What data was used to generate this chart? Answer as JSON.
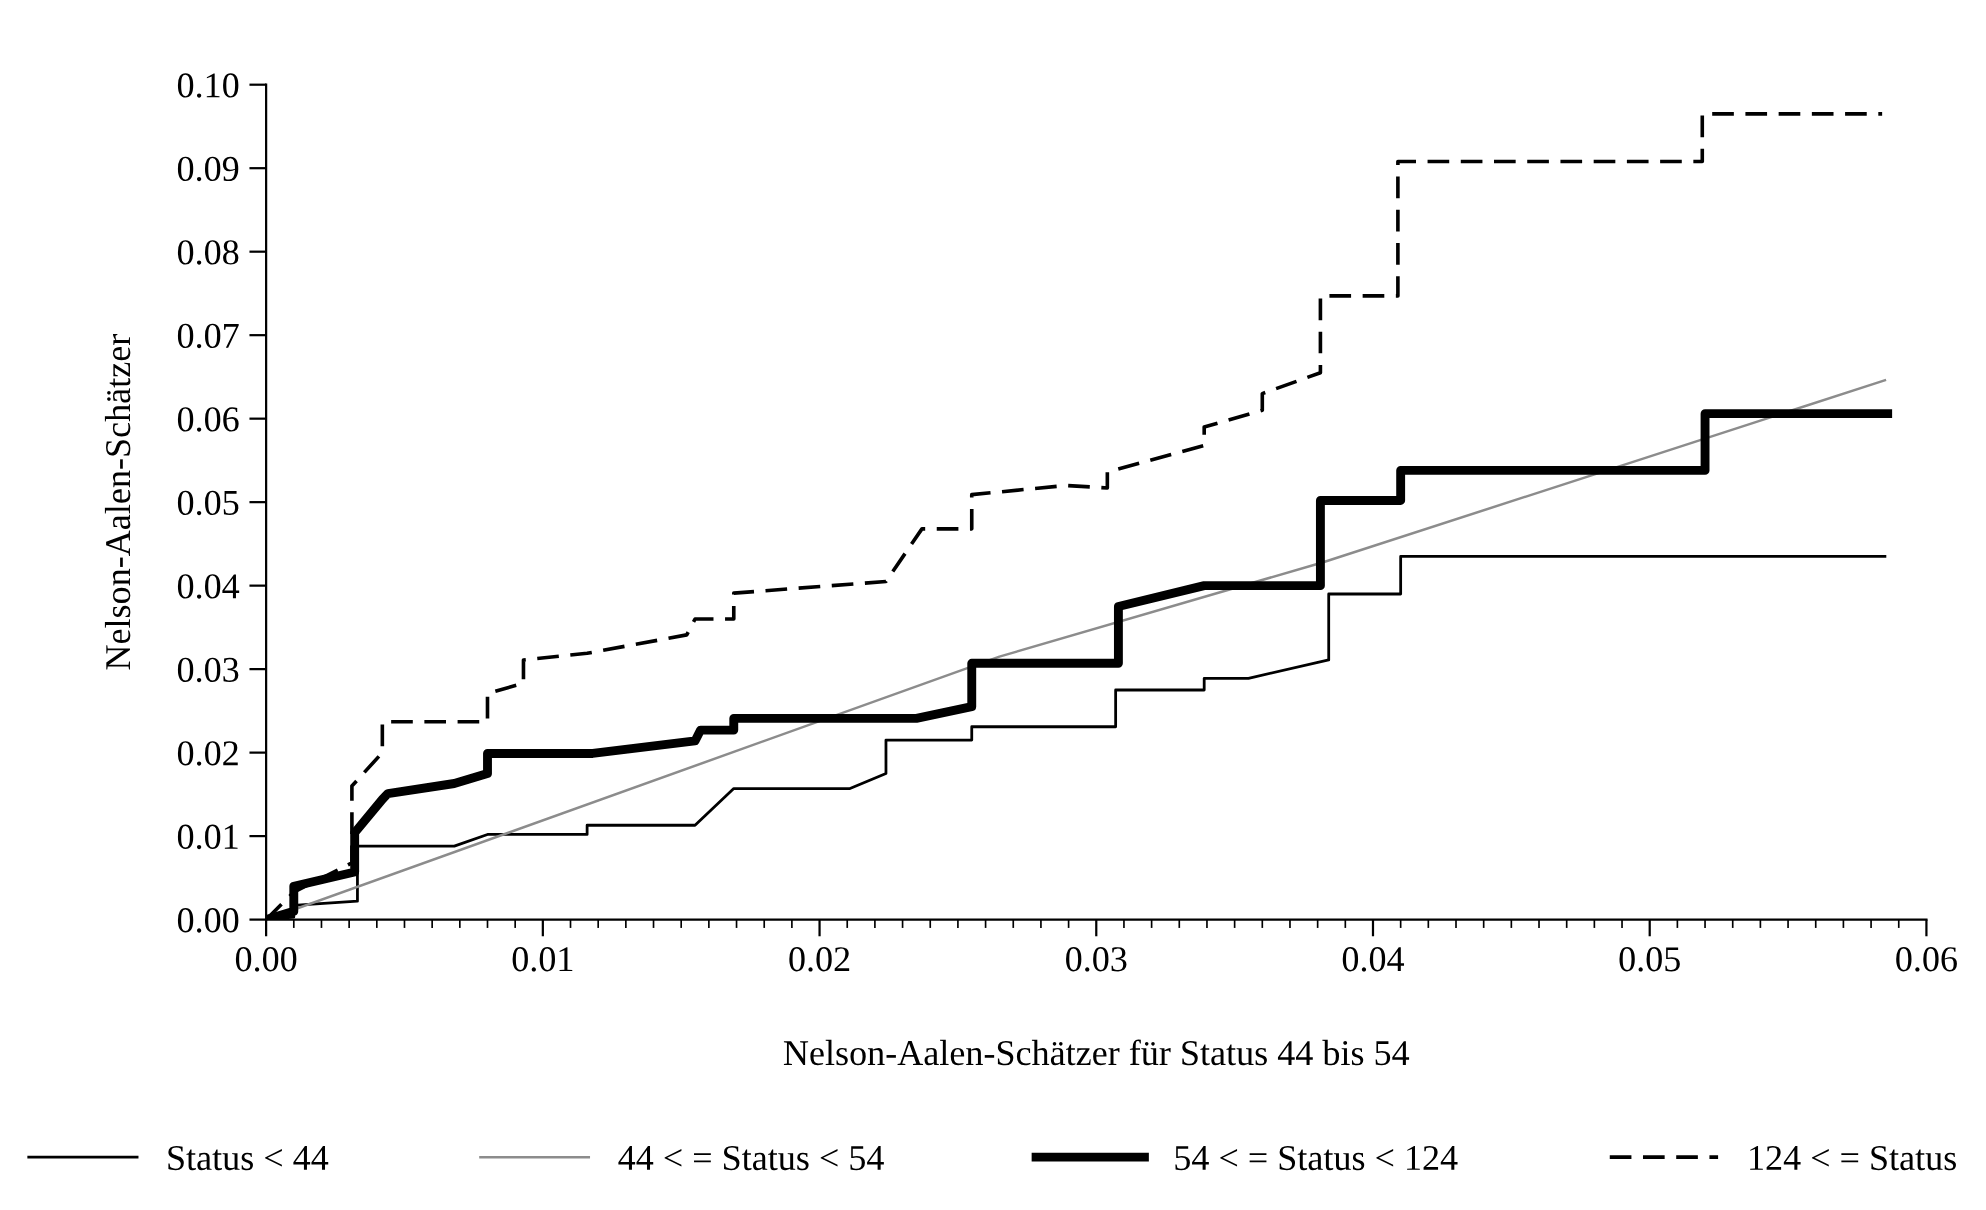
{
  "chart_data": {
    "type": "line",
    "xlabel": "Nelson-Aalen-Schätzer für Status 44 bis 54",
    "ylabel": "Nelson-Aalen-Schätzer",
    "xlim": [
      0,
      0.06
    ],
    "ylim": [
      0,
      0.1
    ],
    "xticks": [
      {
        "value": 0,
        "label": "0.00"
      },
      {
        "value": 0.01,
        "label": "0.01"
      },
      {
        "value": 0.02,
        "label": "0.02"
      },
      {
        "value": 0.03,
        "label": "0.03"
      },
      {
        "value": 0.04,
        "label": "0.04"
      },
      {
        "value": 0.05,
        "label": "0.05"
      },
      {
        "value": 0.06,
        "label": "0.06"
      },
      {
        "value": 0.001,
        "label": null
      },
      {
        "value": 0.002,
        "label": null
      },
      {
        "value": 0.003,
        "label": null
      },
      {
        "value": 0.004,
        "label": null
      },
      {
        "value": 0.005,
        "label": null
      },
      {
        "value": 0.006,
        "label": null
      },
      {
        "value": 0.007,
        "label": null
      },
      {
        "value": 0.008,
        "label": null
      },
      {
        "value": 0.009,
        "label": null
      },
      {
        "value": 0.011,
        "label": null
      },
      {
        "value": 0.012,
        "label": null
      },
      {
        "value": 0.013,
        "label": null
      },
      {
        "value": 0.014,
        "label": null
      },
      {
        "value": 0.015,
        "label": null
      },
      {
        "value": 0.016,
        "label": null
      },
      {
        "value": 0.017,
        "label": null
      },
      {
        "value": 0.018,
        "label": null
      },
      {
        "value": 0.019,
        "label": null
      },
      {
        "value": 0.021,
        "label": null
      },
      {
        "value": 0.022,
        "label": null
      },
      {
        "value": 0.023,
        "label": null
      },
      {
        "value": 0.024,
        "label": null
      },
      {
        "value": 0.025,
        "label": null
      },
      {
        "value": 0.026,
        "label": null
      },
      {
        "value": 0.027,
        "label": null
      },
      {
        "value": 0.028,
        "label": null
      },
      {
        "value": 0.029,
        "label": null
      },
      {
        "value": 0.031,
        "label": null
      },
      {
        "value": 0.032,
        "label": null
      },
      {
        "value": 0.033,
        "label": null
      },
      {
        "value": 0.034,
        "label": null
      },
      {
        "value": 0.035,
        "label": null
      },
      {
        "value": 0.036,
        "label": null
      },
      {
        "value": 0.037,
        "label": null
      },
      {
        "value": 0.038,
        "label": null
      },
      {
        "value": 0.039,
        "label": null
      },
      {
        "value": 0.041,
        "label": null
      },
      {
        "value": 0.042,
        "label": null
      },
      {
        "value": 0.043,
        "label": null
      },
      {
        "value": 0.044,
        "label": null
      },
      {
        "value": 0.045,
        "label": null
      },
      {
        "value": 0.046,
        "label": null
      },
      {
        "value": 0.047,
        "label": null
      },
      {
        "value": 0.048,
        "label": null
      },
      {
        "value": 0.049,
        "label": null
      },
      {
        "value": 0.051,
        "label": null
      },
      {
        "value": 0.052,
        "label": null
      },
      {
        "value": 0.053,
        "label": null
      },
      {
        "value": 0.054,
        "label": null
      },
      {
        "value": 0.055,
        "label": null
      },
      {
        "value": 0.056,
        "label": null
      },
      {
        "value": 0.057,
        "label": null
      },
      {
        "value": 0.058,
        "label": null
      },
      {
        "value": 0.059,
        "label": null
      }
    ],
    "yticks": [
      {
        "value": 0,
        "label": "0.00"
      },
      {
        "value": 0.01,
        "label": "0.01"
      },
      {
        "value": 0.02,
        "label": "0.02"
      },
      {
        "value": 0.03,
        "label": "0.03"
      },
      {
        "value": 0.04,
        "label": "0.04"
      },
      {
        "value": 0.05,
        "label": "0.05"
      },
      {
        "value": 0.06,
        "label": "0.06"
      },
      {
        "value": 0.07,
        "label": "0.07"
      },
      {
        "value": 0.08,
        "label": "0.08"
      },
      {
        "value": 0.09,
        "label": "0.09"
      },
      {
        "value": 0.1,
        "label": "0.10"
      }
    ],
    "grid": false,
    "legend": "bottom",
    "marker": "none",
    "series": [
      {
        "name": "Status < 44",
        "color": "#000000",
        "line_style": "solid",
        "x": [
          0,
          0.001,
          0.001,
          0.0033,
          0.0033,
          0.0068,
          0.008,
          0.0116,
          0.0116,
          0.0155,
          0.0169,
          0.0211,
          0.0224,
          0.0224,
          0.0255,
          0.0255,
          0.0307,
          0.0307,
          0.0339,
          0.0339,
          0.0355,
          0.0384,
          0.0384,
          0.041,
          0.041,
          0.0585
        ],
        "values": [
          0,
          0.0003,
          0.0017,
          0.0022,
          0.0088,
          0.0088,
          0.0102,
          0.0102,
          0.0113,
          0.0113,
          0.0157,
          0.0157,
          0.0175,
          0.0215,
          0.0215,
          0.0231,
          0.0231,
          0.0275,
          0.0275,
          0.0289,
          0.0289,
          0.0311,
          0.039,
          0.039,
          0.0435,
          0.0435
        ]
      },
      {
        "name": "44 < = Status < 54",
        "color": "#8c8c8c",
        "line_style": "solid",
        "x": [
          0,
          0.0265,
          0.0382,
          0.0585
        ],
        "values": [
          0,
          0.0315,
          0.0428,
          0.0646
        ]
      },
      {
        "name": "54 < = Status < 124",
        "color": "#000000",
        "line_style": "solid",
        "x": [
          0,
          0.001,
          0.001,
          0.0032,
          0.0032,
          0.0042,
          0.0044,
          0.0068,
          0.008,
          0.008,
          0.0118,
          0.0155,
          0.0157,
          0.0169,
          0.0169,
          0.0235,
          0.0255,
          0.0255,
          0.0308,
          0.0308,
          0.0339,
          0.0381,
          0.0381,
          0.041,
          0.041,
          0.052,
          0.052,
          0.0586
        ],
        "values": [
          0,
          0.001,
          0.004,
          0.0057,
          0.0104,
          0.0144,
          0.0151,
          0.0163,
          0.0175,
          0.0199,
          0.0199,
          0.0214,
          0.0227,
          0.0227,
          0.0241,
          0.0241,
          0.0255,
          0.0307,
          0.0307,
          0.0375,
          0.04,
          0.04,
          0.0502,
          0.0502,
          0.0538,
          0.0538,
          0.0606,
          0.0606
        ]
      },
      {
        "name": "124 < = Status",
        "color": "#000000",
        "line_style": "dashed",
        "x": [
          0,
          0.001,
          0.0031,
          0.0031,
          0.0042,
          0.0042,
          0.008,
          0.008,
          0.0093,
          0.0093,
          0.0116,
          0.0152,
          0.0155,
          0.0169,
          0.0169,
          0.0224,
          0.0237,
          0.0255,
          0.0255,
          0.0289,
          0.0304,
          0.0304,
          0.0339,
          0.0339,
          0.036,
          0.036,
          0.0381,
          0.0381,
          0.0409,
          0.0409,
          0.0519,
          0.0519,
          0.0584
        ],
        "values": [
          0,
          0.0033,
          0.0068,
          0.016,
          0.02,
          0.0237,
          0.0237,
          0.0271,
          0.0283,
          0.0311,
          0.0319,
          0.0341,
          0.036,
          0.036,
          0.0391,
          0.0405,
          0.0468,
          0.0468,
          0.0509,
          0.052,
          0.0517,
          0.0536,
          0.0568,
          0.059,
          0.061,
          0.063,
          0.0655,
          0.0747,
          0.0747,
          0.0908,
          0.0908,
          0.0965,
          0.0965
        ]
      }
    ]
  }
}
